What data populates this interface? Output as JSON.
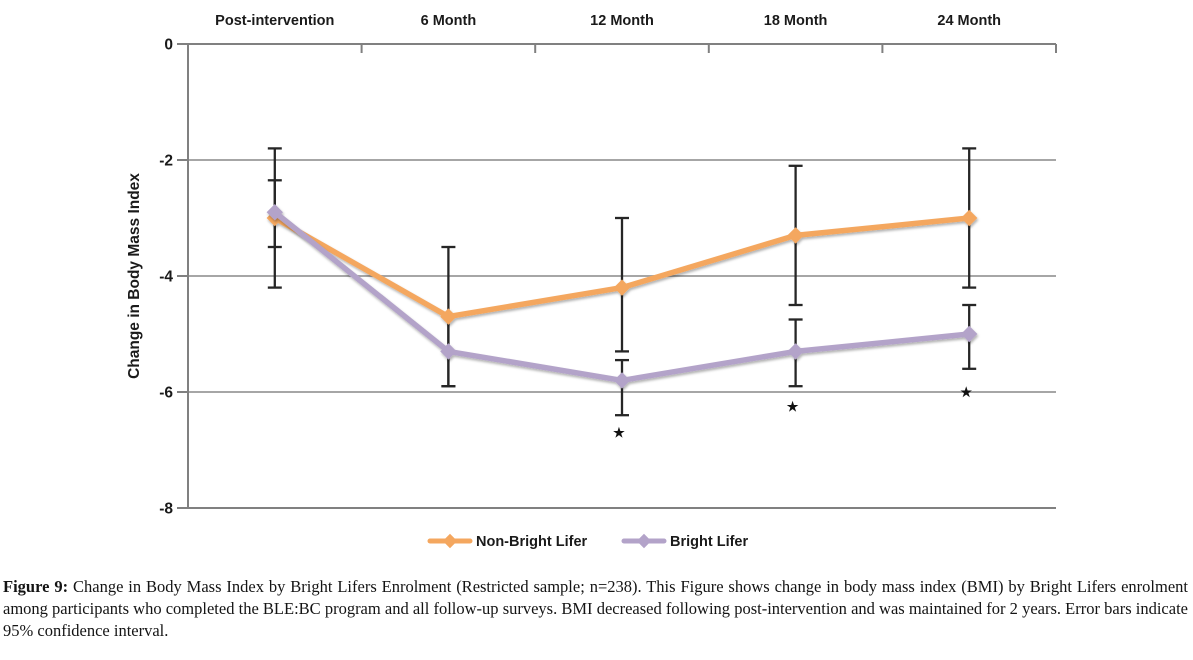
{
  "figure": {
    "caption_label": "Figure 9:",
    "caption_text": " Change in Body Mass Index by Bright Lifers Enrolment (Restricted sample; n=238). This Figure shows change in body mass index (BMI) by Bright Lifers enrolment among participants who completed the BLE:BC program and all follow-up surveys. BMI decreased following post-intervention and was maintained for 2 years. Error bars indicate 95% confidence interval."
  },
  "chart_data": {
    "type": "line",
    "title": "",
    "xlabel": "",
    "ylabel": "Change in Body Mass Index",
    "categories": [
      "Post-intervention",
      "6 Month",
      "12 Month",
      "18 Month",
      "24 Month"
    ],
    "yticks": [
      0,
      -2,
      -4,
      -6,
      -8
    ],
    "ylim": [
      -8,
      0
    ],
    "grid": true,
    "legend_position": "bottom",
    "error_bars": "95% confidence interval",
    "colors": {
      "gridline": "#A6A6A6",
      "axis": "#808080",
      "error_bar": "#262626",
      "text": "#1a1a1a"
    },
    "series": [
      {
        "name": "Non-Bright Lifer",
        "color": "#F4A75F",
        "marker": "diamond",
        "values": [
          -3.0,
          -4.7,
          -4.2,
          -3.3,
          -3.0
        ],
        "ci_upper": [
          -1.8,
          -3.5,
          -3.0,
          -2.1,
          -1.8
        ],
        "ci_lower": [
          -4.2,
          -5.9,
          -5.3,
          -4.5,
          -4.2
        ]
      },
      {
        "name": "Bright Lifer",
        "color": "#B3A3C9",
        "marker": "diamond",
        "values": [
          -2.9,
          -5.3,
          -5.8,
          -5.3,
          -5.0
        ],
        "ci_upper": [
          -2.35,
          -4.7,
          -5.45,
          -4.75,
          -4.5
        ],
        "ci_lower": [
          -3.5,
          -5.9,
          -6.4,
          -5.9,
          -5.6
        ]
      }
    ],
    "annotations": [
      {
        "category": "12 Month",
        "symbol": "★",
        "y": -6.7,
        "meaning": "statistically significant"
      },
      {
        "category": "18 Month",
        "symbol": "★",
        "y": -6.25,
        "meaning": "statistically significant"
      },
      {
        "category": "24 Month",
        "symbol": "★",
        "y": -6.0,
        "meaning": "statistically significant"
      }
    ]
  }
}
